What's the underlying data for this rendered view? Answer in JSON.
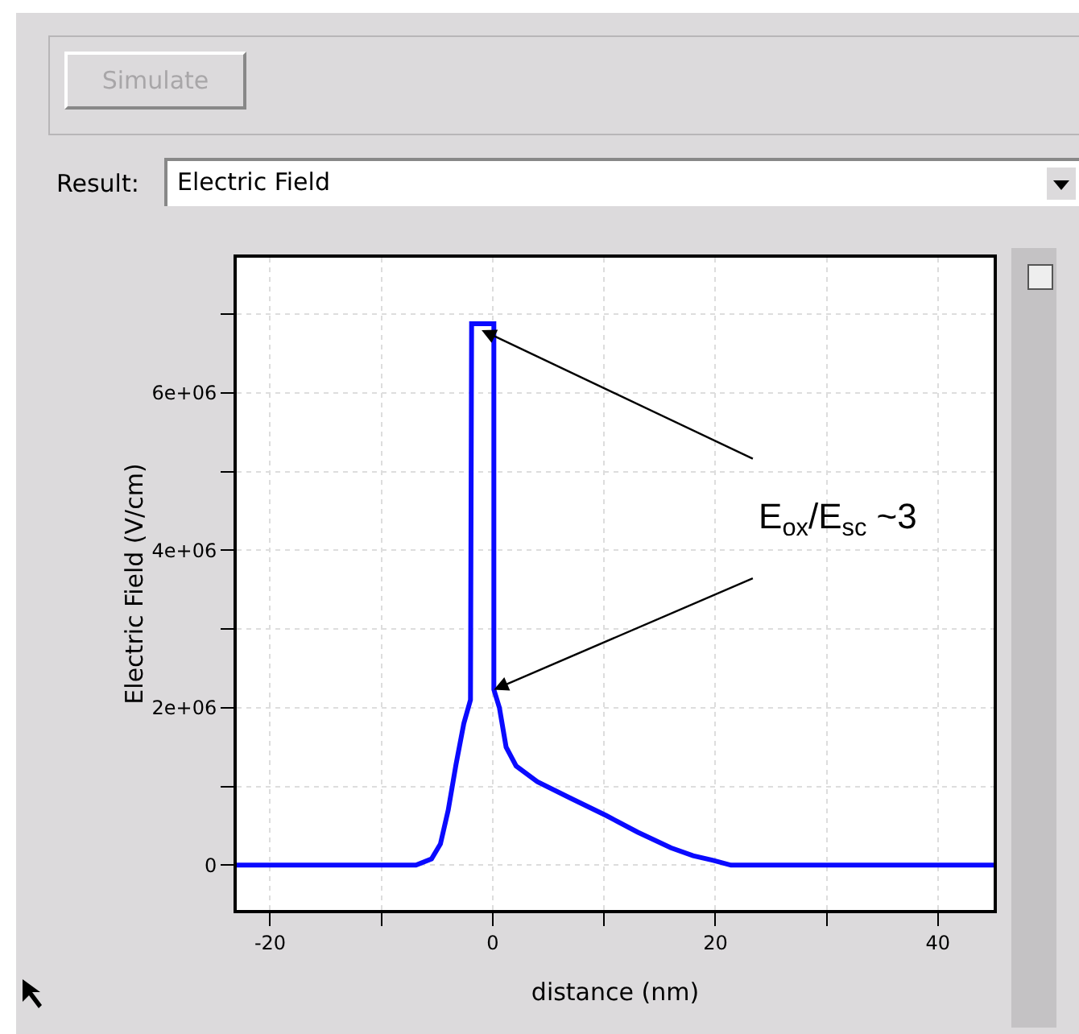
{
  "chart_data": {
    "type": "line",
    "xlabel": "distance (nm)",
    "ylabel": "Electric Field (V/cm)",
    "x": [
      -23,
      -6.9,
      -5.5,
      -4.7,
      -4,
      -3.3,
      -2.6,
      -2.0,
      -1.9,
      0.1,
      0.1,
      0.6,
      1.2,
      2.1,
      4,
      7,
      10.2,
      13,
      16,
      18,
      19.8,
      21.4,
      45
    ],
    "series": [
      {
        "color": "#0a0aff",
        "values": [
          0,
          0,
          80000,
          270000,
          700000,
          1280000,
          1800000,
          2100000,
          6880000,
          6880000,
          2230000,
          2000000,
          1500000,
          1260000,
          1060000,
          850000,
          630000,
          420000,
          220000,
          120000,
          60000,
          0,
          0
        ]
      }
    ],
    "xlim": [
      -23,
      45
    ],
    "ylim": [
      -570000,
      7720000
    ],
    "xticks": [
      -20,
      {
        "value": -10,
        "label": null
      },
      0,
      {
        "value": 10,
        "label": null
      },
      20,
      {
        "value": 30,
        "label": null
      },
      40
    ],
    "yticks": [
      {
        "value": 0,
        "label": "0"
      },
      {
        "value": 1000000,
        "label": null
      },
      {
        "value": 2000000,
        "label": "2e+06"
      },
      {
        "value": 3000000,
        "label": null
      },
      {
        "value": 4000000,
        "label": "4e+06"
      },
      {
        "value": 5000000,
        "label": null
      },
      {
        "value": 6000000,
        "label": "6e+06"
      },
      {
        "value": 7000000,
        "label": null
      }
    ],
    "grid": true,
    "marker": "none",
    "line_style": "solid",
    "annotations": [
      "Simulate",
      "Result:",
      "Electric Field",
      {
        "text": "E$_{ox}$/E$_{sc}$ ~3",
        "x": -1,
        "y": 6800000
      }
    ]
  }
}
